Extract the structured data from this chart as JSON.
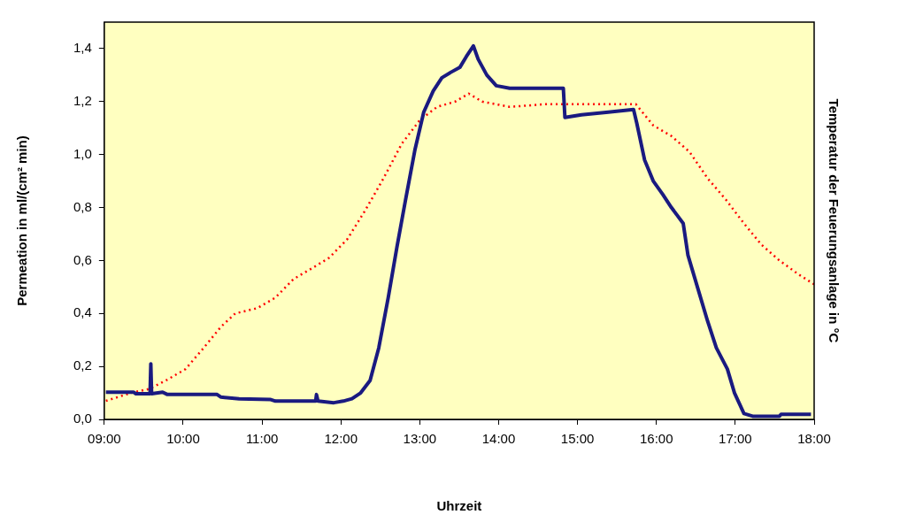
{
  "chart_data": {
    "type": "line",
    "xlabel": "Uhrzeit",
    "ylabel": "Permeation in ml/(cm² min)",
    "y2label": "Temperatur der Feuerungsanlage in °C",
    "xlim": [
      9,
      18
    ],
    "xticks": [
      {
        "value": 9,
        "label": "09:00"
      },
      {
        "value": 10,
        "label": "10:00"
      },
      {
        "value": 11,
        "label": "11:00"
      },
      {
        "value": 12,
        "label": "12:00"
      },
      {
        "value": 13,
        "label": "13:00"
      },
      {
        "value": 14,
        "label": "14:00"
      },
      {
        "value": 15,
        "label": "15:00"
      },
      {
        "value": 16,
        "label": "16:00"
      },
      {
        "value": 17,
        "label": "17:00"
      },
      {
        "value": 18,
        "label": "18:00"
      }
    ],
    "ylim": [
      0,
      1.5
    ],
    "yticks": [
      {
        "value": 0,
        "label": "0,0"
      },
      {
        "value": 0.2,
        "label": "0,2"
      },
      {
        "value": 0.4,
        "label": "0,4"
      },
      {
        "value": 0.6,
        "label": "0,6"
      },
      {
        "value": 0.8,
        "label": "0,8"
      },
      {
        "value": 1,
        "label": "1,0"
      },
      {
        "value": 1.2,
        "label": "1,2"
      },
      {
        "value": 1.4,
        "label": "1,4"
      }
    ],
    "grid": false,
    "legend": false,
    "marker": "none",
    "series": [
      {
        "color": "#1a1a80",
        "line_style": "solid",
        "x": [
          9.02,
          9.37,
          9.4,
          9.58,
          9.59,
          9.6,
          9.74,
          9.8,
          10.43,
          10.48,
          10.71,
          11.11,
          11.17,
          11.68,
          11.69,
          11.71,
          11.91,
          12.03,
          12.14,
          12.25,
          12.37,
          12.48,
          12.6,
          12.71,
          12.82,
          12.94,
          13.05,
          13.17,
          13.28,
          13.39,
          13.51,
          13.59,
          13.68,
          13.74,
          13.85,
          13.97,
          14.14,
          14.82,
          14.84,
          15.05,
          15.39,
          15.71,
          15.75,
          15.85,
          15.96,
          16.08,
          16.19,
          16.34,
          16.4,
          16.53,
          16.65,
          16.76,
          16.9,
          16.99,
          17.11,
          17.22,
          17.56,
          17.58,
          17.96
        ],
        "values": [
          0.103,
          0.103,
          0.097,
          0.097,
          0.21,
          0.097,
          0.103,
          0.094,
          0.094,
          0.084,
          0.078,
          0.075,
          0.069,
          0.069,
          0.094,
          0.069,
          0.063,
          0.069,
          0.078,
          0.1,
          0.147,
          0.27,
          0.46,
          0.65,
          0.83,
          1.02,
          1.16,
          1.24,
          1.29,
          1.31,
          1.33,
          1.37,
          1.41,
          1.36,
          1.3,
          1.26,
          1.25,
          1.25,
          1.14,
          1.15,
          1.16,
          1.17,
          1.12,
          0.98,
          0.9,
          0.85,
          0.8,
          0.74,
          0.62,
          0.49,
          0.37,
          0.27,
          0.19,
          0.1,
          0.022,
          0.012,
          0.012,
          0.019,
          0.019
        ]
      },
      {
        "color": "#ff0000",
        "line_style": "dotted",
        "x": [
          9.02,
          9.34,
          9.57,
          9.8,
          10.03,
          10.26,
          10.48,
          10.66,
          10.94,
          11.17,
          11.4,
          11.63,
          11.85,
          12.08,
          12.31,
          12.54,
          12.77,
          13.0,
          13.22,
          13.45,
          13.62,
          13.79,
          14.14,
          14.59,
          15.05,
          15.51,
          15.74,
          15.96,
          16.19,
          16.42,
          16.65,
          16.88,
          17.11,
          17.33,
          17.56,
          17.79,
          18
        ],
        "values": [
          0.07,
          0.1,
          0.115,
          0.15,
          0.19,
          0.27,
          0.35,
          0.4,
          0.42,
          0.46,
          0.53,
          0.57,
          0.61,
          0.68,
          0.79,
          0.91,
          1.04,
          1.13,
          1.18,
          1.2,
          1.23,
          1.2,
          1.18,
          1.19,
          1.19,
          1.19,
          1.19,
          1.11,
          1.07,
          1.01,
          0.91,
          0.83,
          0.74,
          0.66,
          0.6,
          0.55,
          0.51
        ]
      }
    ]
  }
}
